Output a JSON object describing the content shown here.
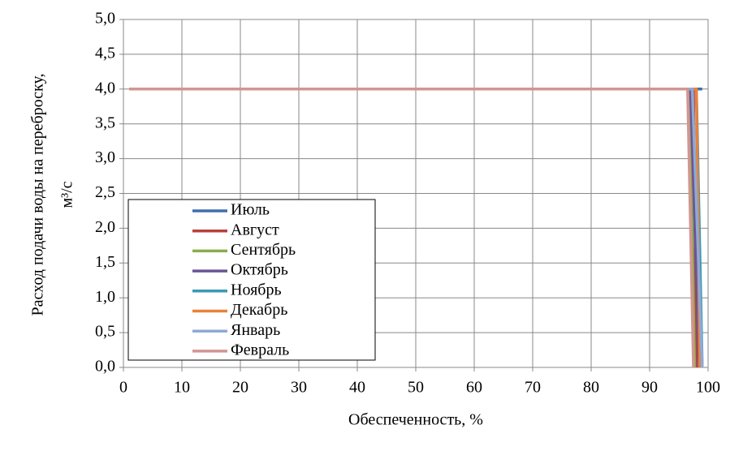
{
  "chart_data": {
    "type": "line",
    "ylabel": [
      "Расход подачи воды на переброску,",
      "м³/с"
    ],
    "xlabel": "Обеспеченность, %",
    "xlim": [
      0,
      100
    ],
    "xticks": [
      0,
      10,
      20,
      30,
      40,
      50,
      60,
      70,
      80,
      90,
      100
    ],
    "ylim": [
      0,
      5
    ],
    "yticks": [
      {
        "value": 0,
        "label": "0,0"
      },
      {
        "value": 0.5,
        "label": "0,5"
      },
      {
        "value": 1,
        "label": "1,0"
      },
      {
        "value": 1.5,
        "label": "1,5"
      },
      {
        "value": 2,
        "label": "2,0"
      },
      {
        "value": 2.5,
        "label": "2,5"
      },
      {
        "value": 3,
        "label": "3,0"
      },
      {
        "value": 3.5,
        "label": "3,5"
      },
      {
        "value": 4,
        "label": "4,0"
      },
      {
        "value": 4.5,
        "label": "4,5"
      },
      {
        "value": 5,
        "label": "5,0"
      }
    ],
    "grid": true,
    "series": [
      {
        "name": "Июль",
        "color": "#3f6fb0",
        "x": [
          1,
          99
        ],
        "values": [
          4,
          4
        ]
      },
      {
        "name": "Август",
        "color": "#b8403c",
        "x": [
          1,
          97.5,
          98
        ],
        "values": [
          4,
          4,
          0
        ]
      },
      {
        "name": "Сентябрь",
        "color": "#8aad4a",
        "x": [
          1,
          96.8,
          97.7
        ],
        "values": [
          4,
          4,
          0
        ]
      },
      {
        "name": "Октябрь",
        "color": "#6b5594",
        "x": [
          1,
          97,
          98.5
        ],
        "values": [
          4,
          4,
          0
        ]
      },
      {
        "name": "Ноябрь",
        "color": "#3a9ab5",
        "x": [
          1,
          98,
          99
        ],
        "values": [
          4,
          4,
          0
        ]
      },
      {
        "name": "Декабрь",
        "color": "#e8823a",
        "x": [
          1,
          98,
          98.6
        ],
        "values": [
          4,
          4,
          0
        ]
      },
      {
        "name": "Январь",
        "color": "#8fa9d6",
        "x": [
          1,
          97.3,
          99
        ],
        "values": [
          4,
          4,
          0
        ]
      },
      {
        "name": "Февраль",
        "color": "#d29593",
        "x": [
          1,
          96.5,
          97.5
        ],
        "values": [
          4,
          4,
          0
        ]
      }
    ]
  }
}
